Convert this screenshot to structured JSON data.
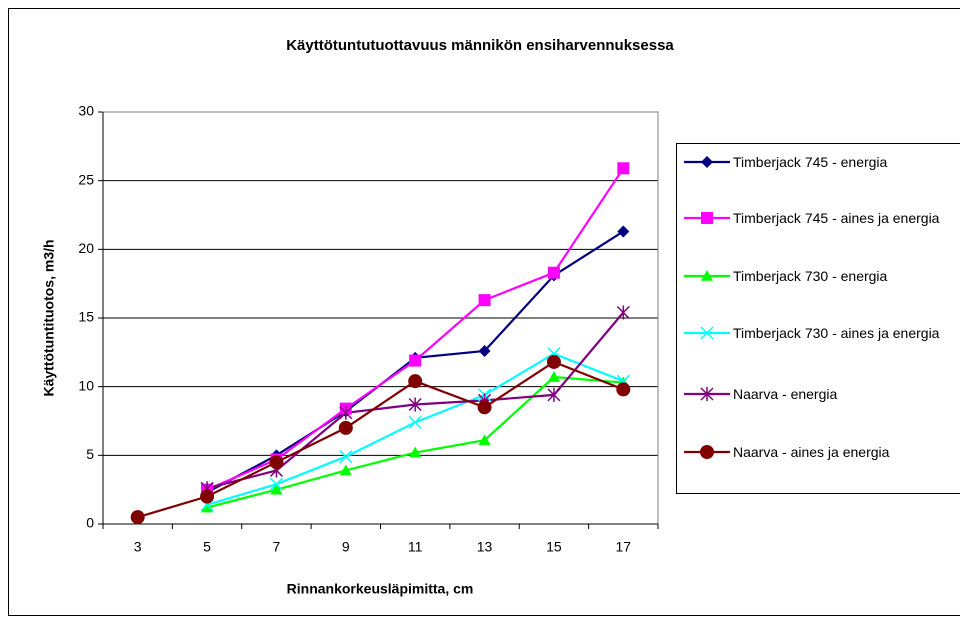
{
  "chart_data": {
    "type": "line",
    "title": "Käyttötuntutuottavuus männikön ensiharvennuksessa",
    "x_label": "Rinnankorkeusläpimitta, cm",
    "y_label": "Käyttötuntituotos, m3/h",
    "categories": [
      "3",
      "5",
      "7",
      "9",
      "11",
      "13",
      "15",
      "17"
    ],
    "ylim": [
      0,
      30
    ],
    "yticks": [
      0,
      5,
      10,
      15,
      20,
      25,
      30
    ],
    "grid": true,
    "legend": "right",
    "series": [
      {
        "name": "Timberjack 745 - energia",
        "color": "#000080",
        "marker": "diamond",
        "values": [
          null,
          2.3,
          5.0,
          8.2,
          12.1,
          12.6,
          18.1,
          21.3
        ]
      },
      {
        "name": "Timberjack 745 - aines ja energia",
        "color": "#ff00ff",
        "marker": "square",
        "values": [
          null,
          2.5,
          4.7,
          8.4,
          11.9,
          16.3,
          18.3,
          25.9
        ]
      },
      {
        "name": "Timberjack 730 - energia",
        "color": "#00ff00",
        "marker": "triangle",
        "values": [
          null,
          1.2,
          2.5,
          3.9,
          5.2,
          6.1,
          10.7,
          10.3
        ]
      },
      {
        "name": "Timberjack 730 - aines ja energia",
        "color": "#00ffff",
        "marker": "x",
        "values": [
          null,
          1.4,
          2.9,
          4.9,
          7.4,
          9.4,
          12.4,
          10.4
        ]
      },
      {
        "name": "Naarva - energia",
        "color": "#800080",
        "marker": "star",
        "values": [
          null,
          2.6,
          3.9,
          8.1,
          8.7,
          9.0,
          9.4,
          15.4
        ]
      },
      {
        "name": "Naarva - aines ja energia",
        "color": "#800000",
        "marker": "circle",
        "values": [
          0.5,
          2.0,
          4.5,
          7.0,
          10.4,
          8.5,
          11.8,
          9.8
        ]
      }
    ]
  }
}
